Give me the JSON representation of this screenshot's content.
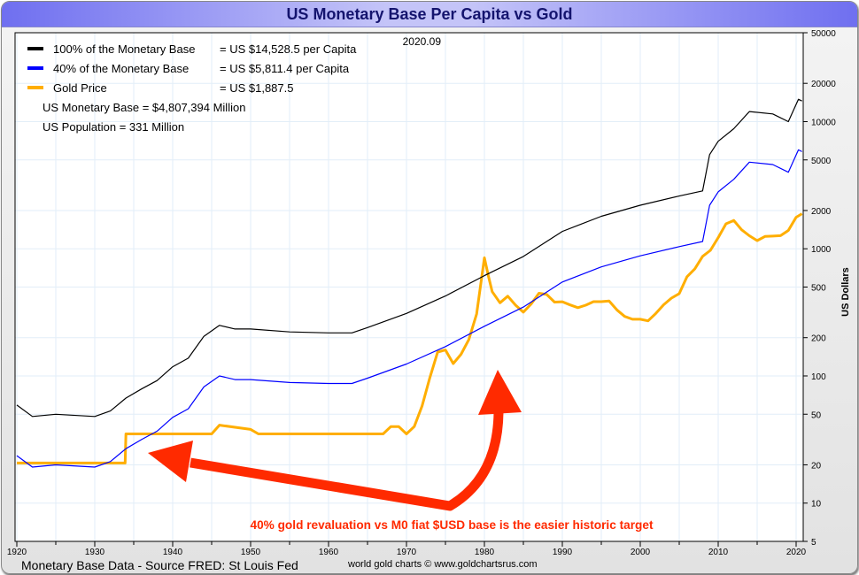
{
  "title": "US Monetary Base Per Capita vs Gold",
  "date_label": "2020.09",
  "legend": [
    {
      "label": "100% of the Monetary Base",
      "value": "= US $14,528.5 per Capita",
      "color": "#000000"
    },
    {
      "label": "40% of the Monetary Base",
      "value": "= US $5,811.4 per Capita",
      "color": "#0000ff"
    },
    {
      "label": "Gold Price",
      "value": "= US $1,887.5",
      "color": "#ffae00"
    }
  ],
  "info": [
    "US Monetary Base = $4,807,394 Million",
    "US Population = 331 Million"
  ],
  "annotation": "40% gold revaluation vs M0 fiat $USD base is the easier historic target",
  "annotation_color": "#ff2a00",
  "footer_left": "Monetary Base Data - Source FRED: St Louis Fed",
  "footer_center": "world gold charts © www.goldchartsrus.com",
  "chart_data": {
    "type": "line",
    "title": "US Monetary Base Per Capita vs Gold",
    "ylabel": "US Dollars",
    "yscale": "log",
    "ylim": [
      5,
      50000
    ],
    "xlim": [
      1920,
      2020.75
    ],
    "yticks": [
      5,
      10,
      20,
      50,
      100,
      200,
      500,
      1000,
      2000,
      5000,
      10000,
      20000,
      50000
    ],
    "xticks": [
      1920,
      1930,
      1940,
      1950,
      1960,
      1970,
      1980,
      1990,
      2000,
      2010,
      2020
    ],
    "grid": true,
    "legend_placement": "top-left",
    "series": [
      {
        "name": "100% of the Monetary Base",
        "color": "#000000",
        "x": [
          1920,
          1922,
          1925,
          1930,
          1932,
          1934,
          1936,
          1938,
          1940,
          1942,
          1944,
          1946,
          1948,
          1950,
          1955,
          1960,
          1963,
          1965,
          1970,
          1975,
          1980,
          1985,
          1990,
          1995,
          2000,
          2005,
          2008,
          2008.9,
          2010,
          2012,
          2014,
          2017,
          2019,
          2020.3,
          2020.75
        ],
        "y": [
          59,
          48,
          50,
          48,
          53,
          67,
          79,
          92,
          118,
          138,
          205,
          250,
          234,
          234,
          222,
          218,
          218,
          240,
          310,
          425,
          615,
          870,
          1370,
          1800,
          2200,
          2600,
          2850,
          5500,
          7000,
          8800,
          12000,
          11500,
          10000,
          15000,
          14528.5
        ]
      },
      {
        "name": "40% of the Monetary Base",
        "color": "#0000ff",
        "x": [
          1920,
          1922,
          1925,
          1930,
          1932,
          1934,
          1936,
          1938,
          1940,
          1942,
          1944,
          1946,
          1948,
          1950,
          1955,
          1960,
          1963,
          1965,
          1970,
          1975,
          1980,
          1985,
          1990,
          1995,
          2000,
          2005,
          2008,
          2008.9,
          2010,
          2012,
          2014,
          2017,
          2019,
          2020.3,
          2020.75
        ],
        "y": [
          23.6,
          19.2,
          20,
          19.2,
          21.2,
          26.8,
          31.6,
          36.8,
          47.2,
          55.2,
          82,
          100,
          93.6,
          93.6,
          88.8,
          87.2,
          87.2,
          96,
          124,
          170,
          246,
          348,
          548,
          720,
          880,
          1040,
          1140,
          2200,
          2800,
          3520,
          4800,
          4600,
          4000,
          6000,
          5811.4
        ]
      },
      {
        "name": "Gold Price",
        "color": "#ffae00",
        "x": [
          1920,
          1933.9,
          1934,
          1945,
          1946,
          1950,
          1951,
          1967,
          1968,
          1969,
          1970,
          1971,
          1972,
          1973,
          1974,
          1975,
          1976,
          1977,
          1978,
          1979,
          1980,
          1980.5,
          1981,
          1982,
          1983,
          1984,
          1985,
          1986,
          1987,
          1988,
          1989,
          1990,
          1991,
          1992,
          1993,
          1994,
          1995,
          1996,
          1997,
          1998,
          1999,
          2000,
          2001,
          2002,
          2003,
          2004,
          2005,
          2006,
          2007,
          2008,
          2009,
          2010,
          2011,
          2012,
          2013,
          2014,
          2015,
          2016,
          2017,
          2018,
          2019,
          2020,
          2020.75
        ],
        "y": [
          20.67,
          20.67,
          35,
          35,
          41,
          38,
          35,
          35,
          40,
          40,
          35,
          40,
          58,
          97,
          154,
          160,
          125,
          148,
          193,
          307,
          850,
          615,
          460,
          376,
          424,
          360,
          317,
          368,
          447,
          437,
          381,
          383,
          362,
          344,
          360,
          384,
          384,
          388,
          331,
          294,
          279,
          279,
          271,
          310,
          363,
          409,
          444,
          603,
          695,
          872,
          972,
          1225,
          1572,
          1669,
          1411,
          1266,
          1160,
          1250,
          1257,
          1268,
          1393,
          1770,
          1887.5
        ]
      }
    ]
  }
}
